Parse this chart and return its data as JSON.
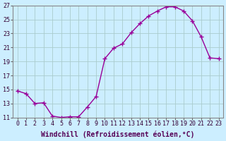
{
  "x": [
    0,
    1,
    2,
    3,
    4,
    5,
    6,
    7,
    8,
    9,
    10,
    11,
    12,
    13,
    14,
    15,
    16,
    17,
    18,
    19,
    20,
    21,
    22,
    23
  ],
  "y": [
    14.8,
    14.4,
    13.0,
    13.1,
    11.2,
    11.0,
    11.1,
    11.1,
    12.5,
    14.0,
    19.4,
    20.9,
    21.5,
    23.1,
    24.4,
    25.5,
    26.2,
    26.8,
    26.8,
    26.2,
    24.8,
    22.5,
    19.5,
    19.4
  ],
  "xlabel": "Windchill (Refroidissement éolien,°C)",
  "ylim": [
    11,
    27
  ],
  "xlim": [
    -0.5,
    23.5
  ],
  "yticks": [
    11,
    13,
    15,
    17,
    19,
    21,
    23,
    25,
    27
  ],
  "xticks": [
    0,
    1,
    2,
    3,
    4,
    5,
    6,
    7,
    8,
    9,
    10,
    11,
    12,
    13,
    14,
    15,
    16,
    17,
    18,
    19,
    20,
    21,
    22,
    23
  ],
  "line_color": "#990099",
  "marker": "+",
  "marker_size": 4,
  "bg_color": "#cceeff",
  "grid_color": "#aacccc",
  "xlabel_fontsize": 7,
  "tick_fontsize": 6,
  "line_width": 1.0
}
